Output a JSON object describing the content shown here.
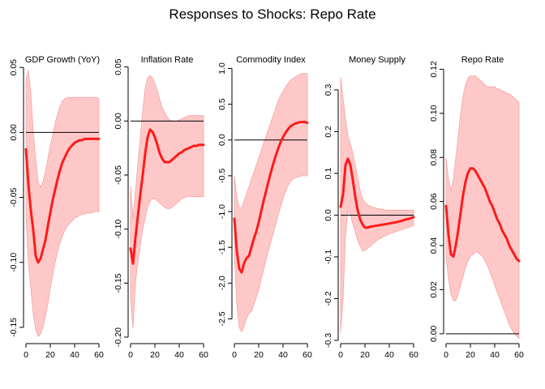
{
  "title": "Responses to Shocks: Repo Rate",
  "colors": {
    "line": "#ff1a1a",
    "band": "#ffc8c8",
    "band_edge": "#f4a4a4",
    "zero": "#000000"
  },
  "chart_data": [
    {
      "type": "line",
      "title": "GDP Growth (YoY)",
      "xlim": [
        0,
        60
      ],
      "ylim": [
        -0.16,
        0.052
      ],
      "xticks": [
        0,
        20,
        40,
        60
      ],
      "xtick_labels": [
        "0",
        "20",
        "40",
        "60"
      ],
      "yticks": [
        -0.15,
        -0.1,
        -0.05,
        0.0,
        0.05
      ],
      "ytick_labels": [
        "-0.15",
        "-0.10",
        "-0.05",
        "0.00",
        "0.05"
      ],
      "zero_line": 0,
      "x": [
        0,
        2,
        4,
        6,
        8,
        10,
        12,
        14,
        16,
        18,
        20,
        22,
        24,
        26,
        28,
        30,
        32,
        34,
        36,
        38,
        40,
        42,
        44,
        46,
        48,
        50,
        52,
        54,
        56,
        58,
        60
      ],
      "irf": [
        -0.013,
        -0.04,
        -0.06,
        -0.075,
        -0.095,
        -0.1,
        -0.097,
        -0.09,
        -0.083,
        -0.072,
        -0.062,
        -0.052,
        -0.044,
        -0.036,
        -0.029,
        -0.023,
        -0.019,
        -0.015,
        -0.012,
        -0.01,
        -0.008,
        -0.007,
        -0.006,
        -0.006,
        -0.005,
        -0.005,
        -0.005,
        -0.005,
        -0.005,
        -0.005,
        -0.005
      ],
      "upper": [
        0.04,
        0.048,
        0.03,
        0.0,
        -0.02,
        -0.038,
        -0.042,
        -0.038,
        -0.03,
        -0.02,
        -0.01,
        -0.002,
        0.007,
        0.014,
        0.02,
        0.024,
        0.026,
        0.027,
        0.027,
        0.027,
        0.027,
        0.027,
        0.027,
        0.027,
        0.027,
        0.027,
        0.027,
        0.027,
        0.027,
        0.027,
        0.026
      ],
      "lower": [
        -0.065,
        -0.1,
        -0.12,
        -0.14,
        -0.152,
        -0.157,
        -0.155,
        -0.15,
        -0.142,
        -0.132,
        -0.12,
        -0.11,
        -0.1,
        -0.092,
        -0.085,
        -0.08,
        -0.075,
        -0.072,
        -0.07,
        -0.068,
        -0.066,
        -0.065,
        -0.064,
        -0.063,
        -0.063,
        -0.062,
        -0.062,
        -0.062,
        -0.061,
        -0.061,
        -0.061
      ]
    },
    {
      "type": "line",
      "title": "Inflation Rate",
      "xlim": [
        0,
        60
      ],
      "ylim": [
        -0.203,
        0.052
      ],
      "xticks": [
        0,
        20,
        40,
        60
      ],
      "xtick_labels": [
        "0",
        "20",
        "40",
        "60"
      ],
      "yticks": [
        -0.2,
        -0.15,
        -0.1,
        -0.05,
        0.0,
        0.05
      ],
      "ytick_labels": [
        "-0.20",
        "-0.15",
        "-0.10",
        "-0.05",
        "0.00",
        "0.05"
      ],
      "zero_line": 0,
      "x": [
        0,
        2,
        4,
        6,
        8,
        10,
        12,
        14,
        16,
        18,
        20,
        22,
        24,
        26,
        28,
        30,
        32,
        34,
        36,
        38,
        40,
        42,
        44,
        46,
        48,
        50,
        52,
        54,
        56,
        58,
        60
      ],
      "irf": [
        -0.118,
        -0.132,
        -0.108,
        -0.088,
        -0.068,
        -0.05,
        -0.03,
        -0.015,
        -0.008,
        -0.01,
        -0.015,
        -0.022,
        -0.03,
        -0.035,
        -0.038,
        -0.038,
        -0.038,
        -0.036,
        -0.034,
        -0.032,
        -0.03,
        -0.029,
        -0.027,
        -0.026,
        -0.025,
        -0.024,
        -0.023,
        -0.023,
        -0.022,
        -0.022,
        -0.022
      ],
      "upper": [
        -0.06,
        -0.09,
        -0.065,
        -0.04,
        -0.015,
        0.01,
        0.03,
        0.04,
        0.042,
        0.04,
        0.035,
        0.028,
        0.02,
        0.013,
        0.008,
        0.004,
        0.001,
        0.0,
        0.0,
        0.0,
        0.001,
        0.002,
        0.003,
        0.004,
        0.005,
        0.005,
        0.005,
        0.005,
        0.005,
        0.005,
        0.005
      ],
      "lower": [
        -0.165,
        -0.192,
        -0.15,
        -0.13,
        -0.115,
        -0.1,
        -0.09,
        -0.08,
        -0.074,
        -0.072,
        -0.072,
        -0.074,
        -0.076,
        -0.078,
        -0.08,
        -0.081,
        -0.081,
        -0.08,
        -0.078,
        -0.076,
        -0.074,
        -0.072,
        -0.071,
        -0.07,
        -0.07,
        -0.07,
        -0.07,
        -0.07,
        -0.07,
        -0.07,
        -0.07
      ]
    },
    {
      "type": "line",
      "title": "Commodity Index",
      "xlim": [
        0,
        60
      ],
      "ylim": [
        -2.8,
        1.05
      ],
      "xticks": [
        0,
        20,
        40,
        60
      ],
      "xtick_labels": [
        "0",
        "20",
        "40",
        "60"
      ],
      "yticks": [
        -2.5,
        -2.0,
        -1.5,
        -1.0,
        -0.5,
        0.0,
        0.5,
        1.0
      ],
      "ytick_labels": [
        "-2.5",
        "-2.0",
        "-1.5",
        "-1.0",
        "-0.5",
        "0.0",
        "0.5",
        "1.0"
      ],
      "zero_line": 0,
      "x": [
        0,
        2,
        4,
        6,
        8,
        10,
        12,
        14,
        16,
        18,
        20,
        22,
        24,
        26,
        28,
        30,
        32,
        34,
        36,
        38,
        40,
        42,
        44,
        46,
        48,
        50,
        52,
        54,
        56,
        58,
        60
      ],
      "irf": [
        -1.1,
        -1.55,
        -1.8,
        -1.85,
        -1.72,
        -1.65,
        -1.62,
        -1.5,
        -1.38,
        -1.28,
        -1.15,
        -1.0,
        -0.85,
        -0.72,
        -0.58,
        -0.45,
        -0.33,
        -0.22,
        -0.12,
        -0.03,
        0.04,
        0.1,
        0.15,
        0.19,
        0.21,
        0.23,
        0.24,
        0.25,
        0.25,
        0.25,
        0.24
      ],
      "upper": [
        -0.5,
        -0.8,
        -0.95,
        -0.95,
        -0.85,
        -0.75,
        -0.65,
        -0.55,
        -0.45,
        -0.35,
        -0.25,
        -0.15,
        -0.05,
        0.05,
        0.15,
        0.25,
        0.35,
        0.45,
        0.55,
        0.62,
        0.68,
        0.74,
        0.79,
        0.83,
        0.86,
        0.88,
        0.9,
        0.92,
        0.93,
        0.93,
        0.93
      ],
      "lower": [
        -1.6,
        -2.3,
        -2.62,
        -2.68,
        -2.6,
        -2.5,
        -2.42,
        -2.4,
        -2.3,
        -2.2,
        -2.1,
        -1.95,
        -1.82,
        -1.68,
        -1.55,
        -1.42,
        -1.3,
        -1.18,
        -1.05,
        -0.93,
        -0.82,
        -0.72,
        -0.64,
        -0.58,
        -0.55,
        -0.53,
        -0.52,
        -0.51,
        -0.5,
        -0.5,
        -0.5
      ]
    },
    {
      "type": "line",
      "title": "Money Supply",
      "xlim": [
        0,
        60
      ],
      "ylim": [
        -0.3,
        0.36
      ],
      "xticks": [
        0,
        20,
        40,
        60
      ],
      "xtick_labels": [
        "0",
        "20",
        "40",
        "60"
      ],
      "yticks": [
        -0.3,
        -0.2,
        -0.1,
        0.0,
        0.1,
        0.2,
        0.3
      ],
      "ytick_labels": [
        "-0.3",
        "-0.2",
        "-0.1",
        "0.0",
        "0.1",
        "0.2",
        "0.3"
      ],
      "zero_line": 0,
      "x": [
        0,
        2,
        4,
        6,
        8,
        10,
        12,
        14,
        16,
        18,
        20,
        22,
        24,
        26,
        28,
        30,
        32,
        34,
        36,
        38,
        40,
        42,
        44,
        46,
        48,
        50,
        52,
        54,
        56,
        58,
        60
      ],
      "irf": [
        0.02,
        0.05,
        0.12,
        0.135,
        0.12,
        0.085,
        0.045,
        0.012,
        -0.01,
        -0.022,
        -0.03,
        -0.03,
        -0.028,
        -0.027,
        -0.026,
        -0.025,
        -0.024,
        -0.023,
        -0.022,
        -0.021,
        -0.02,
        -0.019,
        -0.018,
        -0.017,
        -0.015,
        -0.014,
        -0.012,
        -0.01,
        -0.009,
        -0.007,
        -0.005
      ],
      "upper": [
        0.33,
        0.28,
        0.23,
        0.19,
        0.17,
        0.15,
        0.12,
        0.09,
        0.06,
        0.04,
        0.03,
        0.025,
        0.022,
        0.02,
        0.018,
        0.016,
        0.015,
        0.014,
        0.013,
        0.012,
        0.012,
        0.012,
        0.012,
        0.012,
        0.012,
        0.012,
        0.012,
        0.012,
        0.012,
        0.012,
        0.012
      ],
      "lower": [
        -0.28,
        -0.2,
        -0.05,
        0.01,
        0.0,
        -0.02,
        -0.04,
        -0.06,
        -0.075,
        -0.085,
        -0.085,
        -0.08,
        -0.075,
        -0.07,
        -0.065,
        -0.06,
        -0.057,
        -0.054,
        -0.051,
        -0.048,
        -0.045,
        -0.043,
        -0.041,
        -0.039,
        -0.037,
        -0.035,
        -0.033,
        -0.031,
        -0.029,
        -0.027,
        -0.025
      ]
    },
    {
      "type": "line",
      "title": "Repo Rate",
      "xlim": [
        0,
        60
      ],
      "ylim": [
        -0.003,
        0.122
      ],
      "xticks": [
        0,
        20,
        40,
        60
      ],
      "xtick_labels": [
        "0",
        "20",
        "40",
        "60"
      ],
      "yticks": [
        0.0,
        0.02,
        0.04,
        0.06,
        0.08,
        0.1,
        0.12
      ],
      "ytick_labels": [
        "0.00",
        "0.02",
        "0.04",
        "0.06",
        "0.08",
        "0.10",
        "0.12"
      ],
      "zero_line": 0,
      "x": [
        0,
        2,
        4,
        6,
        8,
        10,
        12,
        14,
        16,
        18,
        20,
        22,
        24,
        26,
        28,
        30,
        32,
        34,
        36,
        38,
        40,
        42,
        44,
        46,
        48,
        50,
        52,
        54,
        56,
        58,
        60
      ],
      "irf": [
        0.058,
        0.045,
        0.036,
        0.035,
        0.04,
        0.047,
        0.055,
        0.063,
        0.069,
        0.073,
        0.075,
        0.075,
        0.074,
        0.072,
        0.07,
        0.068,
        0.066,
        0.063,
        0.06,
        0.058,
        0.055,
        0.052,
        0.05,
        0.047,
        0.045,
        0.043,
        0.04,
        0.038,
        0.036,
        0.034,
        0.033
      ],
      "upper": [
        0.08,
        0.07,
        0.065,
        0.07,
        0.08,
        0.09,
        0.1,
        0.108,
        0.113,
        0.116,
        0.117,
        0.117,
        0.117,
        0.116,
        0.115,
        0.114,
        0.113,
        0.112,
        0.112,
        0.112,
        0.112,
        0.111,
        0.111,
        0.11,
        0.11,
        0.109,
        0.109,
        0.108,
        0.107,
        0.106,
        0.105
      ],
      "lower": [
        0.035,
        0.025,
        0.018,
        0.015,
        0.015,
        0.018,
        0.022,
        0.026,
        0.03,
        0.033,
        0.035,
        0.036,
        0.037,
        0.037,
        0.036,
        0.035,
        0.033,
        0.031,
        0.028,
        0.025,
        0.022,
        0.019,
        0.016,
        0.013,
        0.01,
        0.007,
        0.004,
        0.002,
        0.0,
        -0.001,
        -0.002
      ]
    }
  ]
}
